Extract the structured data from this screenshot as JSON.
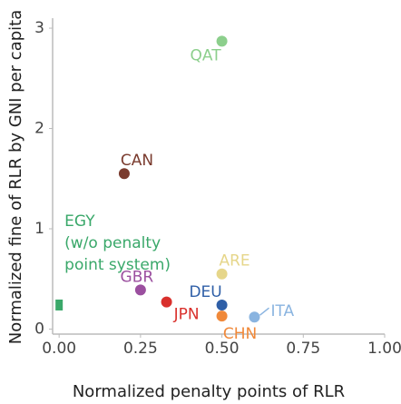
{
  "chart_data": {
    "type": "scatter",
    "x_label": "Normalized penalty points of RLR",
    "y_label": "Normalized fine of RLR by GNI per capita",
    "xlim": [
      -0.02,
      1.0
    ],
    "ylim": [
      -0.05,
      3.1
    ],
    "xticks": [
      {
        "value": 0,
        "label": "0.00"
      },
      {
        "value": 0.25,
        "label": "0.25"
      },
      {
        "value": 0.5,
        "label": "0.50"
      },
      {
        "value": 0.75,
        "label": "0.75"
      },
      {
        "value": 1,
        "label": "1.00"
      }
    ],
    "yticks": [
      0,
      1,
      2,
      3
    ],
    "grid": false,
    "series": [
      {
        "name": "QAT",
        "color": "#8ccf8c",
        "x": [
          0.5
        ],
        "values": [
          2.87
        ]
      },
      {
        "name": "CAN",
        "color": "#7a3b2e",
        "x": [
          0.2
        ],
        "values": [
          1.55
        ]
      },
      {
        "name": "ARE",
        "color": "#e6d68a",
        "x": [
          0.5
        ],
        "values": [
          0.55
        ]
      },
      {
        "name": "DEU",
        "color": "#2f5fa7",
        "x": [
          0.5
        ],
        "values": [
          0.24
        ]
      },
      {
        "name": "CHN",
        "color": "#f0893a",
        "x": [
          0.5
        ],
        "values": [
          0.13
        ]
      },
      {
        "name": "ITA",
        "color": "#8ab4e0",
        "x": [
          0.6
        ],
        "values": [
          0.12
        ]
      },
      {
        "name": "GBR",
        "color": "#9b4f9f",
        "x": [
          0.25
        ],
        "values": [
          0.39
        ]
      },
      {
        "name": "JPN",
        "color": "#d9302c",
        "x": [
          0.33
        ],
        "values": [
          0.27
        ]
      },
      {
        "name": "EGY",
        "color": "#3aa86a",
        "marker": "square",
        "x": [
          0.0
        ],
        "values": [
          0.24
        ]
      }
    ],
    "annotations": [
      "(w/o penalty",
      "point system)"
    ]
  }
}
